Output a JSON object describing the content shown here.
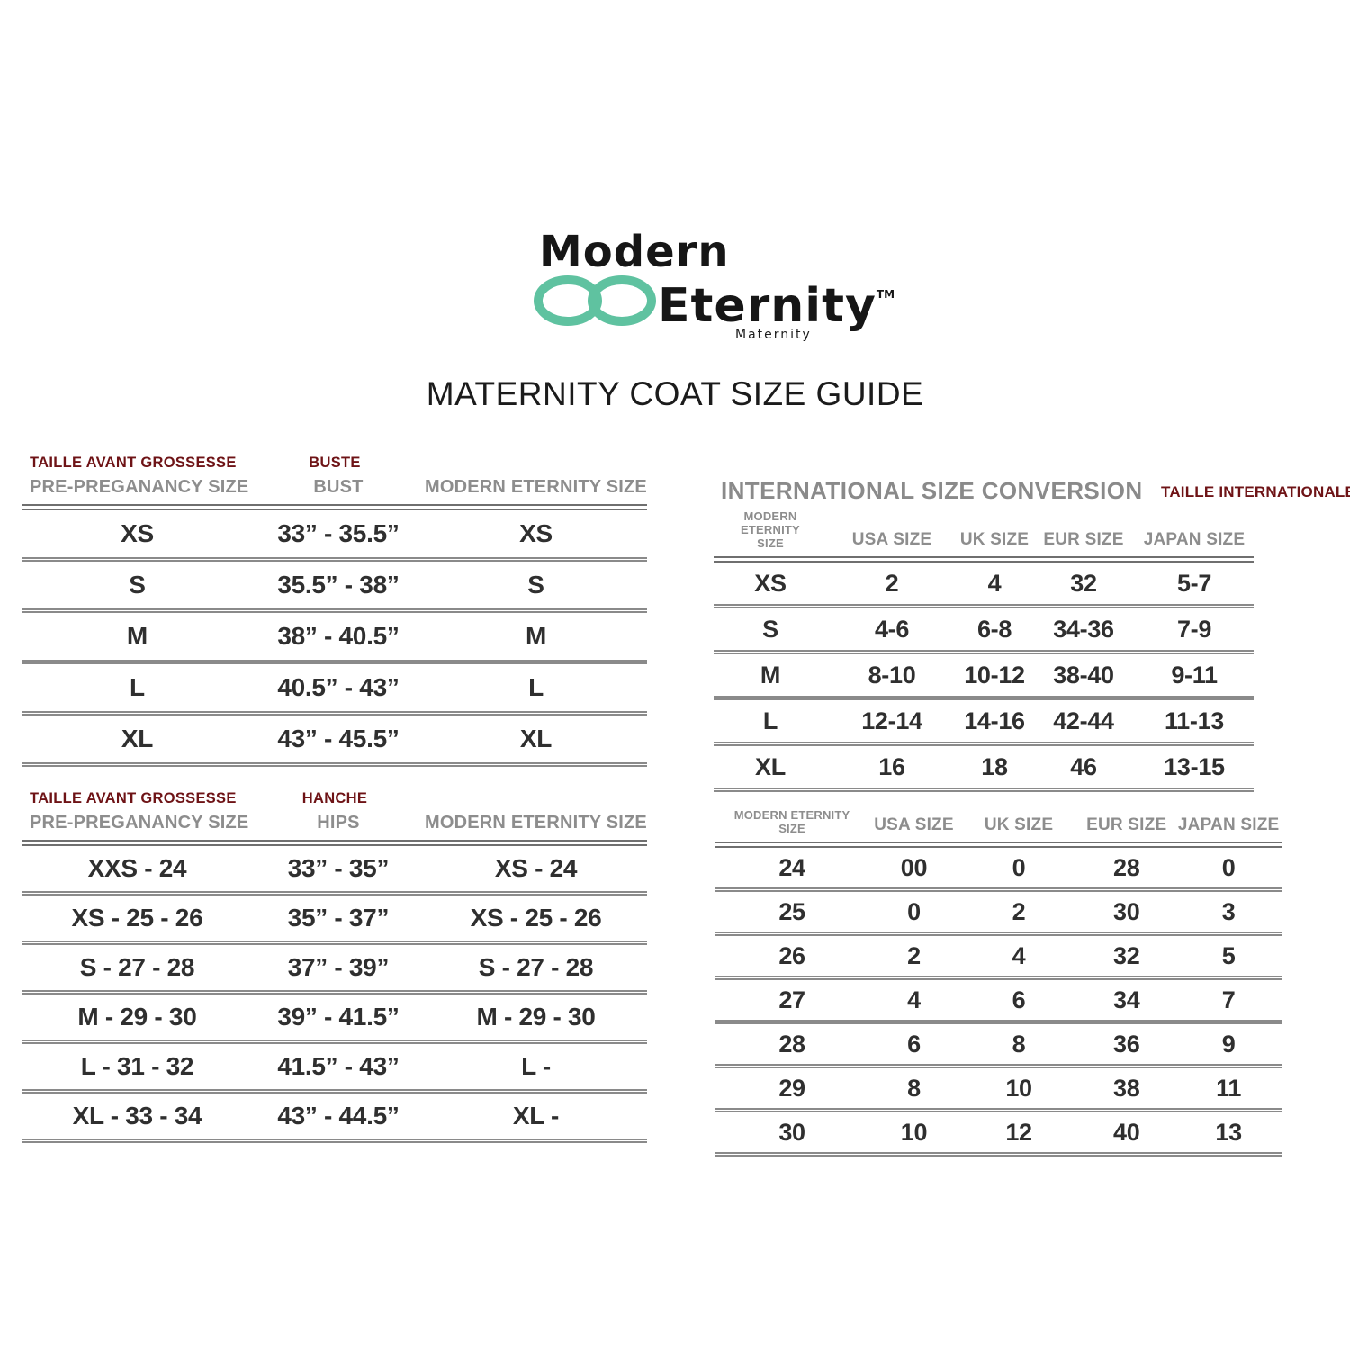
{
  "colors": {
    "accent_teal": "#5FC2A0",
    "french_maroon": "#6E1316",
    "header_gray": "#8D8D8D",
    "data_text": "#2F2F2F",
    "rule_gray": "#8A8A8A"
  },
  "logo": {
    "word1": "Modern",
    "word2": "Eternity",
    "tm": "TM",
    "tagline": "Maternity"
  },
  "title": "MATERNITY COAT SIZE GUIDE",
  "bust_table": {
    "french_left": "TAILLE AVANT GROSSESSE",
    "french_mid": "BUSTE",
    "headers": [
      "PRE-PREGANANCY SIZE",
      "BUST",
      "MODERN ETERNITY SIZE"
    ],
    "rows": [
      [
        "XS",
        "33” - 35.5”",
        "XS"
      ],
      [
        "S",
        "35.5” - 38”",
        "S"
      ],
      [
        "M",
        "38” - 40.5”",
        "M"
      ],
      [
        "L",
        "40.5” - 43”",
        "L"
      ],
      [
        "XL",
        "43” - 45.5”",
        "XL"
      ]
    ]
  },
  "intl_top_table": {
    "title": "INTERNATIONAL SIZE CONVERSION",
    "french": "TAILLE INTERNATIONALE",
    "headers": [
      "MODERN ETERNITY\nSIZE",
      "USA SIZE",
      "UK SIZE",
      "EUR SIZE",
      "JAPAN SIZE"
    ],
    "rows": [
      [
        "XS",
        "2",
        "4",
        "32",
        "5-7"
      ],
      [
        "S",
        "4-6",
        "6-8",
        "34-36",
        "7-9"
      ],
      [
        "M",
        "8-10",
        "10-12",
        "38-40",
        "9-11"
      ],
      [
        "L",
        "12-14",
        "14-16",
        "42-44",
        "11-13"
      ],
      [
        "XL",
        "16",
        "18",
        "46",
        "13-15"
      ]
    ]
  },
  "hips_table": {
    "french_left": "TAILLE AVANT GROSSESSE",
    "french_mid": "HANCHE",
    "headers": [
      "PRE-PREGANANCY SIZE",
      "HIPS",
      "MODERN ETERNITY SIZE"
    ],
    "rows": [
      [
        "XXS - 24",
        "33” - 35”",
        "XS - 24"
      ],
      [
        "XS - 25 - 26",
        "35” - 37”",
        "XS - 25 - 26"
      ],
      [
        "S - 27 - 28",
        "37” - 39”",
        "S - 27 - 28"
      ],
      [
        "M - 29 - 30",
        "39” - 41.5”",
        "M - 29 - 30"
      ],
      [
        "L - 31 - 32",
        "41.5” - 43”",
        "L -"
      ],
      [
        "XL - 33 - 34",
        "43” - 44.5”",
        "XL -"
      ]
    ]
  },
  "intl_bottom_table": {
    "headers": [
      "MODERN ETERNITY\nSIZE",
      "USA SIZE",
      "UK SIZE",
      "EUR SIZE",
      "JAPAN SIZE"
    ],
    "rows": [
      [
        "24",
        "00",
        "0",
        "28",
        "0"
      ],
      [
        "25",
        "0",
        "2",
        "30",
        "3"
      ],
      [
        "26",
        "2",
        "4",
        "32",
        "5"
      ],
      [
        "27",
        "4",
        "6",
        "34",
        "7"
      ],
      [
        "28",
        "6",
        "8",
        "36",
        "9"
      ],
      [
        "29",
        "8",
        "10",
        "38",
        "11"
      ],
      [
        "30",
        "10",
        "12",
        "40",
        "13"
      ]
    ]
  }
}
